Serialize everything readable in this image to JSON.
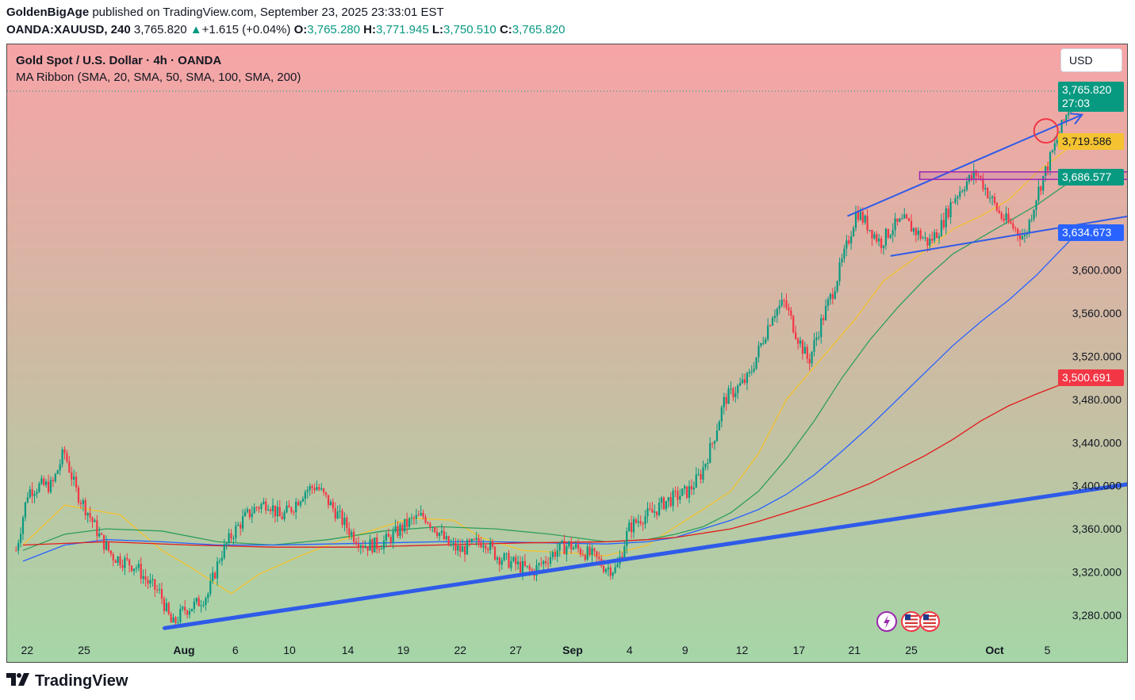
{
  "header": {
    "author": "GoldenBigAge",
    "published": "published on TradingView.com, September 23, 2025 23:33:01 EST",
    "symbol": "OANDA:XAUUSD, 240",
    "last": "3,765.820",
    "change_arrow": "▲",
    "change": "+1.615 (+0.04%)",
    "o_label": "O:",
    "o": "3,765.280",
    "h_label": "H:",
    "h": "3,771.945",
    "l_label": "L:",
    "l": "3,750.510",
    "c_label": "C:",
    "c": "3,765.820"
  },
  "legend": {
    "title": "Gold Spot / U.S. Dollar · 4h · OANDA",
    "indicator": "MA Ribbon (SMA, 20, SMA, 50, SMA, 100, SMA, 200)"
  },
  "currency_button": "USD",
  "price_labels": {
    "last_price": "3,765.820",
    "countdown": "27:03",
    "sma20": "3,719.586",
    "sma50": "3,686.577",
    "sma100": "3,634.673",
    "sma200": "3,500.691"
  },
  "footer": {
    "brand": "TradingView"
  },
  "colors": {
    "up": "#089981",
    "down": "#f23645",
    "sma20": "#f5c331",
    "sma50": "#2e9e5e",
    "sma100": "#2962ff",
    "sma200": "#e31a1c",
    "trendline": "#2f5be8",
    "zone": "#9c27b0",
    "bg_top": "#f7a5a5",
    "bg_bottom": "#a5d6a7",
    "last_label": "#089981",
    "sma20_label": "#f5c331",
    "sma50_label": "#089981",
    "sma100_label": "#2962ff",
    "sma200_label": "#f23645"
  },
  "event_icons": [
    "lightning-icon",
    "us-flag-icon",
    "us-flag-icon"
  ],
  "chart_data": {
    "type": "candlestick",
    "title": "Gold Spot / U.S. Dollar · 4h · OANDA",
    "y_axis_labels": [
      "3,600.000",
      "3,560.000",
      "3,520.000",
      "3,480.000",
      "3,440.000",
      "3,400.000",
      "3,360.000",
      "3,320.000",
      "3,280.000"
    ],
    "y_axis_values": [
      3600,
      3560,
      3520,
      3480,
      3440,
      3400,
      3360,
      3320,
      3280
    ],
    "x_axis_labels": [
      "22",
      "25",
      "Aug",
      "6",
      "10",
      "14",
      "19",
      "22",
      "27",
      "Sep",
      "4",
      "9",
      "12",
      "17",
      "21",
      "25",
      "Oct",
      "5"
    ],
    "ylim": [
      3255,
      3790
    ],
    "series": [
      {
        "name": "XAUUSD 4h",
        "anchors": [
          3340,
          3395,
          3400,
          3400,
          3432,
          3395,
          3375,
          3352,
          3335,
          3330,
          3325,
          3310,
          3300,
          3270,
          3285,
          3290,
          3300,
          3335,
          3355,
          3370,
          3380,
          3385,
          3370,
          3380,
          3395,
          3400,
          3385,
          3370,
          3355,
          3345,
          3345,
          3350,
          3360,
          3368,
          3372,
          3360,
          3345,
          3340,
          3345,
          3350,
          3335,
          3330,
          3325,
          3320,
          3330,
          3340,
          3345,
          3340,
          3335,
          3325,
          3322,
          3360,
          3370,
          3375,
          3385,
          3390,
          3395,
          3410,
          3440,
          3480,
          3490,
          3500,
          3530,
          3560,
          3570,
          3540,
          3515,
          3550,
          3580,
          3615,
          3655,
          3640,
          3625,
          3640,
          3645,
          3635,
          3625,
          3640,
          3665,
          3680,
          3690,
          3670,
          3650,
          3640,
          3630,
          3670,
          3700,
          3730,
          3760,
          3765
        ]
      },
      {
        "name": "SMA 20",
        "x_days": [
          0,
          3,
          7,
          10,
          12,
          15,
          17,
          20,
          23,
          26,
          28,
          31,
          33,
          36,
          39,
          42,
          45,
          47,
          49,
          51,
          53,
          55,
          58,
          60,
          62,
          65,
          67,
          69,
          71,
          73,
          76
        ],
        "values": [
          3345,
          3382,
          3373,
          3340,
          3325,
          3300,
          3318,
          3335,
          3350,
          3362,
          3370,
          3368,
          3352,
          3340,
          3338,
          3335,
          3345,
          3362,
          3378,
          3395,
          3430,
          3480,
          3525,
          3555,
          3590,
          3618,
          3638,
          3650,
          3665,
          3690,
          3720
        ]
      },
      {
        "name": "SMA 50",
        "x_days": [
          0,
          3,
          6,
          10,
          14,
          18,
          22,
          26,
          30,
          34,
          38,
          42,
          45,
          47,
          49,
          51,
          53,
          55,
          57,
          59,
          61,
          63,
          65,
          67,
          69,
          71,
          73,
          76
        ],
        "values": [
          3340,
          3355,
          3360,
          3358,
          3348,
          3345,
          3350,
          3358,
          3362,
          3360,
          3355,
          3348,
          3350,
          3355,
          3362,
          3375,
          3395,
          3425,
          3460,
          3500,
          3535,
          3565,
          3592,
          3615,
          3630,
          3645,
          3660,
          3687
        ]
      },
      {
        "name": "SMA 100",
        "x_days": [
          0,
          3,
          6,
          10,
          14,
          18,
          22,
          26,
          30,
          34,
          38,
          42,
          45,
          47,
          49,
          51,
          53,
          55,
          57,
          59,
          61,
          63,
          65,
          67,
          69,
          71,
          73,
          76
        ],
        "values": [
          3330,
          3345,
          3350,
          3348,
          3345,
          3345,
          3346,
          3347,
          3348,
          3348,
          3347,
          3346,
          3348,
          3352,
          3360,
          3368,
          3378,
          3392,
          3410,
          3432,
          3455,
          3480,
          3505,
          3530,
          3552,
          3572,
          3595,
          3635
        ]
      },
      {
        "name": "SMA 200",
        "x_days": [
          0,
          6,
          12,
          18,
          24,
          30,
          36,
          42,
          45,
          47,
          49,
          51,
          53,
          55,
          57,
          59,
          61,
          63,
          65,
          67,
          69,
          71,
          73,
          76
        ],
        "values": [
          3345,
          3348,
          3345,
          3343,
          3343,
          3345,
          3347,
          3348,
          3350,
          3352,
          3356,
          3360,
          3367,
          3375,
          3383,
          3392,
          3402,
          3415,
          3428,
          3443,
          3460,
          3474,
          3485,
          3500
        ]
      }
    ],
    "annotations": [
      {
        "type": "trendline",
        "from": {
          "day": 10.2,
          "price": 3268
        },
        "to": {
          "day": 82,
          "price": 3406
        }
      },
      {
        "type": "arrow-line",
        "from": {
          "day": 59.4,
          "price": 3650
        },
        "to": {
          "day": 76.3,
          "price": 3744
        }
      },
      {
        "type": "arrow-line",
        "from": {
          "day": 62.5,
          "price": 3613
        },
        "to": {
          "day": 84.8,
          "price": 3661
        }
      },
      {
        "type": "zone",
        "price_from": 3684,
        "price_to": 3691,
        "day_from": 64.6,
        "day_to": 81.8
      },
      {
        "type": "circle",
        "day": 73.7,
        "price": 3729
      }
    ],
    "grid": false,
    "legend_position": "top-left"
  }
}
